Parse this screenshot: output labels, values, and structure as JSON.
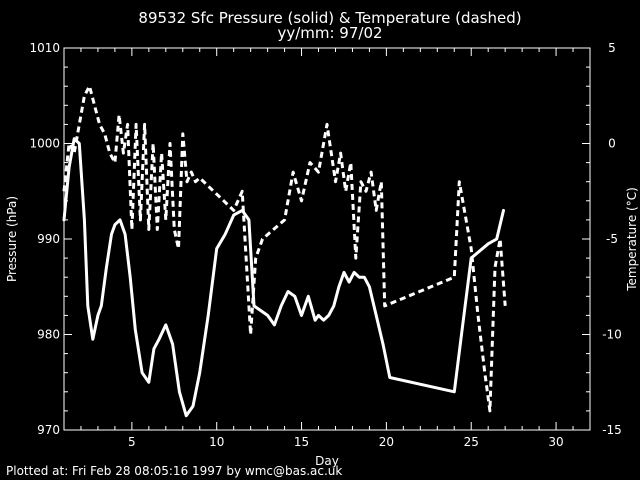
{
  "colors": {
    "background": "#000000",
    "foreground": "#ffffff"
  },
  "chart_data": {
    "type": "line",
    "title": "89532 Sfc Pressure (solid) & Temperature (dashed)",
    "subtitle": "yy/mm: 97/02",
    "xlabel": "Day",
    "ylabel_left": "Pressure (hPa)",
    "ylabel_right": "Temperature (°C)",
    "xlim": [
      1,
      32
    ],
    "ylim_left": [
      970,
      1010
    ],
    "ylim_right": [
      -15,
      5
    ],
    "x_ticks": [
      5,
      10,
      15,
      20,
      25,
      30
    ],
    "y_left_ticks": [
      970,
      980,
      990,
      1000,
      1010
    ],
    "y_right_ticks": [
      -15,
      -10,
      -5,
      0,
      5
    ],
    "x_tick_labels": [
      "5",
      "10",
      "15",
      "20",
      "25",
      "30"
    ],
    "y_left_tick_labels": [
      "970",
      "980",
      "990",
      "1000",
      "1010"
    ],
    "y_right_tick_labels": [
      "-15",
      "-10",
      "-5",
      "0",
      "5"
    ],
    "grid": false,
    "series": [
      {
        "style": "solid",
        "axis": "left",
        "x": [
          1.0,
          1.3,
          1.6,
          1.9,
          2.2,
          2.4,
          2.7,
          3.0,
          3.2,
          3.5,
          3.8,
          4.0,
          4.3,
          4.6,
          4.9,
          5.2,
          5.6,
          6.0,
          6.3,
          6.6,
          7.0,
          7.4,
          7.8,
          8.2,
          8.6,
          9.0,
          9.5,
          10.0,
          10.5,
          11.0,
          11.5,
          11.9,
          12.2,
          12.6,
          13.0,
          13.4,
          13.8,
          14.2,
          14.6,
          15.0,
          15.4,
          15.8,
          16.0,
          16.3,
          16.6,
          16.9,
          17.2,
          17.5,
          17.8,
          18.1,
          18.4,
          18.7,
          19.0,
          19.4,
          19.8,
          20.2,
          24.0,
          24.5,
          25.0,
          26.0,
          26.5,
          26.9
        ],
        "values": [
          992.0,
          997.5,
          1000.5,
          1000.0,
          992.0,
          983.0,
          979.5,
          982.0,
          983.0,
          987.0,
          990.5,
          991.5,
          992.0,
          990.5,
          986.0,
          980.5,
          976.0,
          975.0,
          978.5,
          979.5,
          981.0,
          979.0,
          974.0,
          971.5,
          972.5,
          976.0,
          982.0,
          989.0,
          990.5,
          992.5,
          993.0,
          992.0,
          983.0,
          982.5,
          982.0,
          981.0,
          983.0,
          984.5,
          984.0,
          982.0,
          984.0,
          981.5,
          982.0,
          981.5,
          982.0,
          983.0,
          985.0,
          986.5,
          985.5,
          986.5,
          986.0,
          986.0,
          985.0,
          982.0,
          979.0,
          975.5,
          974.0,
          981.0,
          988.0,
          989.5,
          990.0,
          993.0
        ]
      },
      {
        "style": "dashed",
        "axis": "right",
        "x": [
          1.0,
          1.3,
          1.6,
          1.9,
          2.2,
          2.5,
          2.8,
          3.1,
          3.4,
          3.7,
          4.0,
          4.25,
          4.5,
          4.75,
          5.0,
          5.25,
          5.5,
          5.75,
          6.0,
          6.25,
          6.5,
          6.75,
          7.0,
          7.25,
          7.5,
          7.75,
          8.0,
          8.25,
          8.5,
          8.75,
          9.0,
          11.0,
          11.5,
          12.0,
          12.3,
          12.7,
          14.0,
          14.5,
          15.0,
          15.5,
          16.0,
          16.5,
          17.0,
          17.3,
          17.6,
          17.9,
          18.2,
          18.5,
          18.8,
          19.1,
          19.4,
          19.7,
          19.9,
          24.0,
          24.3,
          24.7,
          25.0,
          25.4,
          25.8,
          26.1,
          26.4,
          26.7,
          27.0
        ],
        "values": [
          -2.5,
          0.0,
          -0.5,
          1.0,
          2.5,
          3.0,
          2.0,
          1.0,
          0.5,
          -0.5,
          -1.0,
          1.5,
          -0.5,
          1.0,
          -4.5,
          1.0,
          -4.0,
          1.0,
          -4.5,
          0.0,
          -4.5,
          -0.5,
          -4.0,
          0.0,
          -4.5,
          -5.5,
          0.5,
          -2.0,
          -1.5,
          -2.0,
          -1.8,
          -3.5,
          -2.5,
          -10.0,
          -6.0,
          -5.0,
          -4.0,
          -1.5,
          -3.0,
          -1.0,
          -1.5,
          1.0,
          -2.0,
          -0.5,
          -2.5,
          -1.0,
          -6.0,
          -2.0,
          -2.5,
          -1.5,
          -3.5,
          -2.0,
          -8.5,
          -7.0,
          -2.0,
          -4.0,
          -5.5,
          -9.0,
          -12.0,
          -14.0,
          -6.5,
          -5.0,
          -8.5
        ]
      }
    ]
  },
  "footer": {
    "plotted_at": "Plotted at: Fri Feb 28 08:05:16 1997 by wmc@bas.ac.uk"
  }
}
